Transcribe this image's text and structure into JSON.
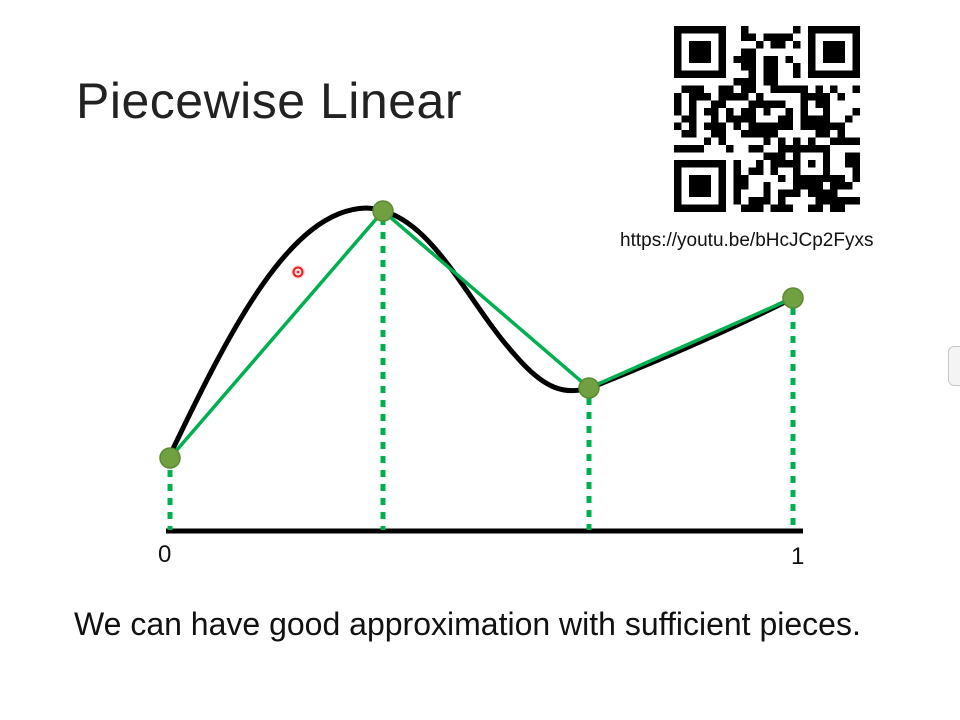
{
  "slide": {
    "title": "Piecewise Linear",
    "caption": "We can have good approximation with sufficient pieces.",
    "axis_start_label": "0",
    "axis_end_label": "1"
  },
  "qr": {
    "url": "https://youtu.be/bHcJCp2Fyxs"
  },
  "colors": {
    "curve": "#000000",
    "piecewise": "#00b050",
    "node_fill": "#70a040",
    "pointer": "#e02020"
  },
  "icons": {
    "pointer": "laser-pointer-icon",
    "qr": "qr-code-icon"
  }
}
